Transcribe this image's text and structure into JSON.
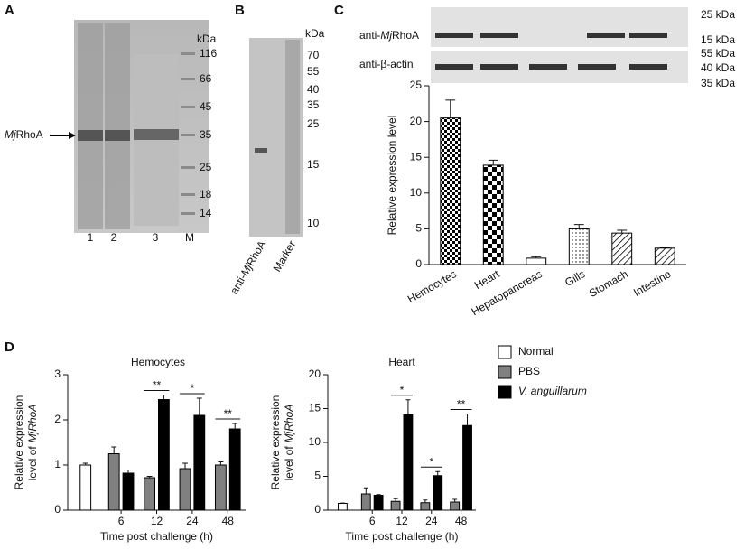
{
  "figure": {
    "panel_labels": [
      "A",
      "B",
      "C",
      "D"
    ],
    "gel_a": {
      "unit": "kDa",
      "markers": [
        "116",
        "66",
        "45",
        "35",
        "25",
        "18",
        "14"
      ],
      "lanes": [
        "1",
        "2",
        "3",
        "M"
      ],
      "band_prefix": "Mj",
      "band_name": "RhoA"
    },
    "blot_b": {
      "unit": "kDa",
      "markers": [
        "70",
        "55",
        "40",
        "35",
        "25",
        "15",
        "10"
      ],
      "lane_prefix": "anti-",
      "lane_italic": "Mj",
      "lane_name": "RhoA",
      "marker_lane": "Marker"
    },
    "blot_c": {
      "row1_prefix": "anti-",
      "row1_italic": "Mj",
      "row1_name": "RhoA",
      "row2": "anti-β-actin",
      "markers_top": [
        "25 kDa",
        "15 kDa"
      ],
      "markers_bottom": [
        "55 kDa",
        "40 kDa",
        "35 kDa"
      ]
    },
    "legend": {
      "normal": "Normal",
      "pbs": "PBS",
      "va": "V. anguillarum"
    }
  },
  "chart_data": [
    {
      "type": "bar",
      "ylabel": "Relative expression level",
      "categories": [
        "Hemocytes",
        "Heart",
        "Hepatopancreas",
        "Gills",
        "Stomach",
        "Intestine"
      ],
      "values": [
        20.5,
        13.9,
        0.9,
        5.0,
        4.4,
        2.3
      ],
      "errors": [
        2.5,
        0.7,
        0.2,
        0.6,
        0.4,
        0.1
      ],
      "patterns": [
        "checker-small",
        "checker-large",
        "plain",
        "dots",
        "hatch",
        "hatch"
      ],
      "color": "#000000",
      "ylim": [
        0,
        25
      ],
      "yticks": [
        0,
        5,
        10,
        15,
        20,
        25
      ]
    },
    {
      "type": "grouped-bar",
      "title": "Hemocytes",
      "xlabel": "Time post challenge (h)",
      "ylabel": [
        "Relative expression",
        "level of",
        "MjRhoA"
      ],
      "categories": [
        null,
        "6",
        "12",
        "24",
        "48"
      ],
      "series": [
        {
          "name": "Normal",
          "color": "#ffffff",
          "values": [
            1.0,
            null,
            null,
            null,
            null
          ],
          "errors": [
            0.04,
            null,
            null,
            null,
            null
          ]
        },
        {
          "name": "PBS",
          "color": "#808080",
          "values": [
            null,
            1.25,
            0.72,
            0.92,
            1.0
          ],
          "errors": [
            null,
            0.15,
            0.03,
            0.12,
            0.07
          ]
        },
        {
          "name": "V. anguillarum",
          "color": "#000000",
          "values": [
            null,
            0.82,
            2.45,
            2.1,
            1.8
          ],
          "errors": [
            null,
            0.07,
            0.1,
            0.38,
            0.12
          ]
        }
      ],
      "significance": [
        null,
        null,
        "**",
        "*",
        "**"
      ],
      "ylim": [
        0,
        3
      ],
      "yticks": [
        0,
        1,
        2,
        3
      ],
      "legend": "right"
    },
    {
      "type": "grouped-bar",
      "title": "Heart",
      "xlabel": "Time post challenge (h)",
      "ylabel": [
        "Relative expression",
        "level of",
        "MjRhoA"
      ],
      "categories": [
        null,
        "6",
        "12",
        "24",
        "48"
      ],
      "series": [
        {
          "color": "#ffffff",
          "values": [
            1.0,
            null,
            null,
            null,
            null
          ],
          "errors": [
            0.05,
            null,
            null,
            null,
            null
          ]
        },
        {
          "color": "#808080",
          "values": [
            null,
            2.4,
            1.3,
            1.1,
            1.2
          ],
          "errors": [
            null,
            0.9,
            0.4,
            0.4,
            0.4
          ]
        },
        {
          "color": "#000000",
          "values": [
            null,
            2.2,
            14.1,
            5.1,
            12.5
          ],
          "errors": [
            null,
            0.1,
            2.2,
            0.6,
            1.7
          ]
        }
      ],
      "significance": [
        null,
        null,
        "*",
        "*",
        "**"
      ],
      "ylim": [
        0,
        20
      ],
      "yticks": [
        0,
        5,
        10,
        15,
        20
      ]
    }
  ]
}
